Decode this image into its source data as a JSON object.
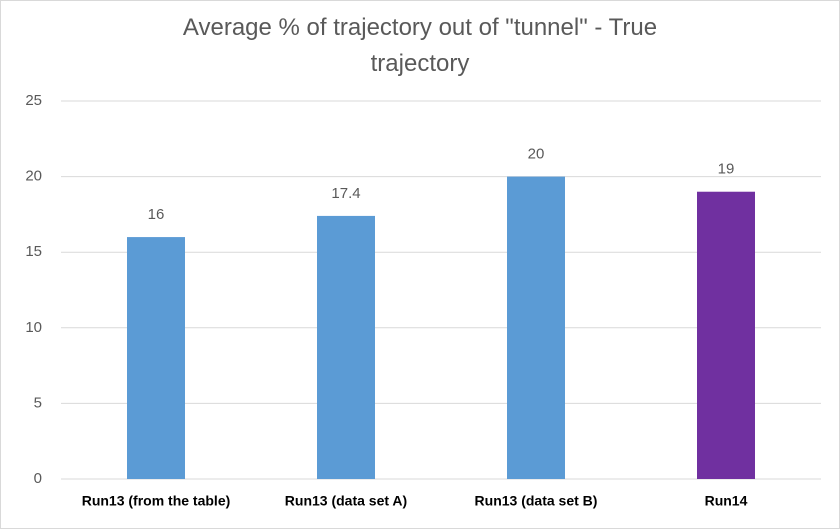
{
  "chart_data": {
    "type": "bar",
    "title": "Average % of trajectory out of \"tunnel\" - True trajectory",
    "categories": [
      "Run13 (from the table)",
      "Run13 (data set A)",
      "Run13 (data set B)",
      "Run14"
    ],
    "values": [
      16,
      17.4,
      20,
      19
    ],
    "colors": [
      "#5b9bd5",
      "#5b9bd5",
      "#5b9bd5",
      "#7030a0"
    ],
    "ylim": [
      0,
      25
    ],
    "yticks": [
      0,
      5,
      10,
      15,
      20,
      25
    ],
    "grid": true
  }
}
